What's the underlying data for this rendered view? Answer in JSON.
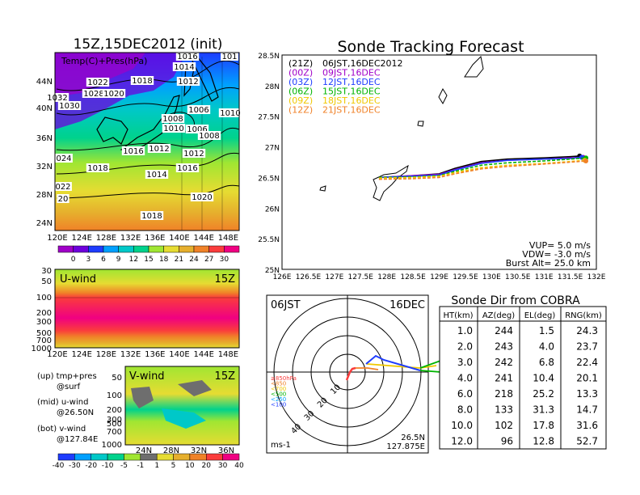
{
  "temp_panel": {
    "title": "15Z,15DEC2012 (init)",
    "label": "Temp(C)+Pres(hPa)",
    "lat_labels": [
      "44N",
      "40N",
      "36N",
      "32N",
      "28N",
      "24N"
    ],
    "lon_labels": [
      "120E",
      "124E",
      "128E",
      "132E",
      "136E",
      "140E",
      "144E",
      "148E"
    ],
    "isobar_labels": [
      "1016",
      "101",
      "1014",
      "1022",
      "1018",
      "1012",
      "1032",
      "1028",
      "1020",
      "1030",
      "1006",
      "1008",
      "1010",
      "1010",
      "1006",
      "1008",
      "1016",
      "1012",
      "1012",
      "024",
      "1018",
      "1014",
      "1016",
      "022",
      "20",
      "1020",
      "1018"
    ],
    "colorbar_ticks": [
      "0",
      "3",
      "6",
      "9",
      "12",
      "15",
      "18",
      "21",
      "24",
      "27",
      "30"
    ],
    "colorbar_colors": [
      "#a000c8",
      "#6e00dc",
      "#1e3cff",
      "#00a0ff",
      "#00c8c8",
      "#00d28c",
      "#a0e632",
      "#e6dc32",
      "#e6af2d",
      "#f08228",
      "#fa3c3c",
      "#f00082"
    ]
  },
  "uwind_panel": {
    "label": "U-wind",
    "time": "15Z",
    "p_labels": [
      "30",
      "50",
      "100",
      "200",
      "300",
      "500",
      "700",
      "1000"
    ],
    "lon_labels": [
      "120E",
      "124E",
      "128E",
      "132E",
      "136E",
      "140E",
      "144E",
      "148E"
    ]
  },
  "vwind_panel": {
    "label": "V-wind",
    "time": "15Z",
    "p_labels": [
      "50",
      "100",
      "200",
      "300",
      "500",
      "700",
      "1000"
    ],
    "lat_labels": [
      "24N",
      "28N",
      "32N",
      "36N"
    ],
    "colorbar_ticks": [
      "-40",
      "-30",
      "-20",
      "-10",
      "-5",
      "-1",
      "1",
      "5",
      "10",
      "20",
      "30",
      "40"
    ],
    "colorbar_colors": [
      "#1e3cff",
      "#00a0ff",
      "#00c8c8",
      "#00d28c",
      "#a0e632",
      "#6e6e6e",
      "#e6dc32",
      "#e6af2d",
      "#f08228",
      "#fa3c3c",
      "#f00082"
    ]
  },
  "legend_notes": [
    {
      "l1": "(up) tmp+pres",
      "l2": "@surf"
    },
    {
      "l1": "(mid) u-wind",
      "l2": "@26.50N"
    },
    {
      "l1": "(bot) v-wind",
      "l2": "@127.84E"
    }
  ],
  "track_panel": {
    "title": "Sonde Tracking Forecast",
    "lat_labels": [
      "28.5N",
      "28N",
      "27.5N",
      "27N",
      "26.5N",
      "26N",
      "25.5N",
      "25N"
    ],
    "lon_labels": [
      "126E",
      "126.5E",
      "127E",
      "127.5E",
      "128E",
      "128.5E",
      "129E",
      "129.5E",
      "130E",
      "130.5E",
      "131E",
      "131.5E",
      "132E"
    ],
    "forecasts": [
      {
        "code": "(21Z)",
        "time": "06JST,16DEC2012",
        "color": "#000000"
      },
      {
        "code": "(00Z)",
        "time": "09JST,16DEC",
        "color": "#a000c8"
      },
      {
        "code": "(03Z)",
        "time": "12JST,16DEC",
        "color": "#1e3cff"
      },
      {
        "code": "(06Z)",
        "time": "15JST,16DEC",
        "color": "#00b400"
      },
      {
        "code": "(09Z)",
        "time": "18JST,16DEC",
        "color": "#f0c800"
      },
      {
        "code": "(12Z)",
        "time": "21JST,16DEC",
        "color": "#f08228"
      }
    ],
    "params": [
      "VUP= 5.0 m/s",
      "VDW= -3.0 m/s",
      "Burst Alt= 25.0 km"
    ]
  },
  "polar_panel": {
    "time_label": "06JST",
    "date_label": "16DEC",
    "ring_labels": [
      "10",
      "20",
      "30",
      "40"
    ],
    "pressure_legend": [
      "≥850hPa",
      "<850",
      "<700",
      "<500",
      "<250",
      "<100"
    ],
    "pressure_colors": [
      "#fa3c3c",
      "#f08228",
      "#f0c800",
      "#00b400",
      "#00a0ff",
      "#1e3cff"
    ],
    "unit": "ms-1",
    "location_lat": "26.5N",
    "location_lon": "127.875E"
  },
  "sonde_table": {
    "title": "Sonde Dir from COBRA",
    "headers": [
      "HT(km)",
      "AZ(deg)",
      "EL(deg)",
      "RNG(km)"
    ],
    "rows": [
      [
        "1.0",
        "244",
        "1.5",
        "24.3"
      ],
      [
        "2.0",
        "243",
        "4.0",
        "23.7"
      ],
      [
        "3.0",
        "242",
        "6.8",
        "22.4"
      ],
      [
        "4.0",
        "241",
        "10.4",
        "20.1"
      ],
      [
        "6.0",
        "218",
        "25.2",
        "13.3"
      ],
      [
        "8.0",
        "133",
        "31.3",
        "14.7"
      ],
      [
        "10.0",
        "102",
        "17.8",
        "31.6"
      ],
      [
        "12.0",
        "96",
        "12.8",
        "52.7"
      ]
    ]
  },
  "chart_data": [
    {
      "type": "line",
      "title": "Sonde Tracking Forecast",
      "xlim": [
        126.0,
        132.0
      ],
      "ylim": [
        25.0,
        28.5
      ],
      "series": [
        {
          "name": "(21Z) 06JST,16DEC2012",
          "x": [
            127.85,
            128.5,
            129.0,
            129.3,
            129.8,
            130.3,
            131.0,
            131.5,
            131.68
          ],
          "y": [
            26.5,
            26.53,
            26.56,
            26.65,
            26.76,
            26.8,
            26.82,
            26.84,
            26.85
          ]
        },
        {
          "name": "(00Z) 09JST,16DEC",
          "x": [
            127.85,
            128.5,
            129.0,
            129.3,
            129.8,
            130.3,
            131.0,
            131.5,
            131.75
          ],
          "y": [
            26.5,
            26.53,
            26.55,
            26.63,
            26.74,
            26.78,
            26.8,
            26.82,
            26.83
          ]
        },
        {
          "name": "(03Z) 12JST,16DEC",
          "x": [
            127.85,
            128.5,
            129.0,
            129.3,
            129.8,
            130.3,
            131.0,
            131.5,
            131.72
          ],
          "y": [
            26.5,
            26.52,
            26.54,
            26.62,
            26.73,
            26.78,
            26.8,
            26.81,
            26.83
          ]
        },
        {
          "name": "(06Z) 15JST,16DEC",
          "x": [
            127.85,
            128.5,
            129.0,
            129.3,
            129.8,
            130.3,
            131.0,
            131.5,
            131.8
          ],
          "y": [
            26.5,
            26.51,
            26.53,
            26.6,
            26.7,
            26.74,
            26.77,
            26.8,
            26.82
          ]
        },
        {
          "name": "(09Z) 18JST,16DEC",
          "x": [
            127.85,
            128.5,
            129.0,
            129.3,
            129.8,
            130.3,
            131.0,
            131.5,
            131.78
          ],
          "y": [
            26.49,
            26.5,
            26.52,
            26.58,
            26.66,
            26.7,
            26.73,
            26.76,
            26.78
          ]
        },
        {
          "name": "(12Z) 21JST,16DEC",
          "x": [
            127.85,
            128.5,
            129.0,
            129.3,
            129.8,
            130.3,
            131.0,
            131.5,
            131.8
          ],
          "y": [
            26.47,
            26.48,
            26.5,
            26.56,
            26.64,
            26.68,
            26.72,
            26.75,
            26.77
          ]
        }
      ]
    },
    {
      "type": "table",
      "title": "Sonde Dir from COBRA",
      "columns": [
        "HT(km)",
        "AZ(deg)",
        "EL(deg)",
        "RNG(km)"
      ],
      "rows": [
        [
          1.0,
          244,
          1.5,
          24.3
        ],
        [
          2.0,
          243,
          4.0,
          23.7
        ],
        [
          3.0,
          242,
          6.8,
          22.4
        ],
        [
          4.0,
          241,
          10.4,
          20.1
        ],
        [
          6.0,
          218,
          25.2,
          13.3
        ],
        [
          8.0,
          133,
          31.3,
          14.7
        ],
        [
          10.0,
          102,
          17.8,
          31.6
        ],
        [
          12.0,
          96,
          12.8,
          52.7
        ]
      ]
    }
  ]
}
